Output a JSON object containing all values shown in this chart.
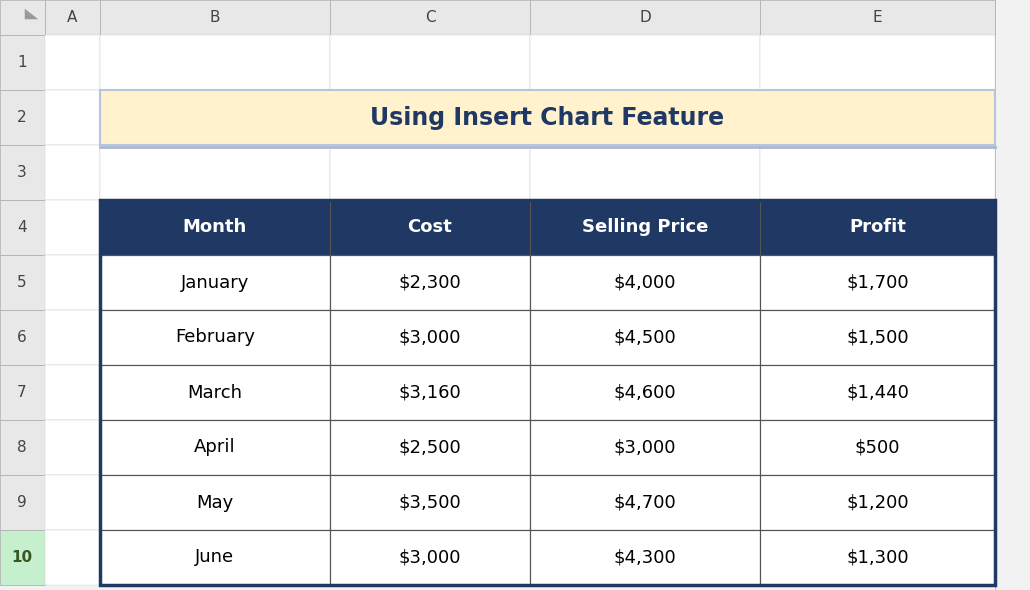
{
  "title": "Using Insert Chart Feature",
  "title_bg": "#FFF2CC",
  "title_border": "#B8C4D9",
  "header_bg": "#1F3864",
  "header_fg": "#FFFFFF",
  "row_bg": "#FFFFFF",
  "row_fg": "#000000",
  "col_headers": [
    "Month",
    "Cost",
    "Selling Price",
    "Profit"
  ],
  "rows": [
    [
      "January",
      "$2,300",
      "$4,000",
      "$1,700"
    ],
    [
      "February",
      "$3,000",
      "$4,500",
      "$1,500"
    ],
    [
      "March",
      "$3,160",
      "$4,600",
      "$1,440"
    ],
    [
      "April",
      "$2,500",
      "$3,000",
      "$500"
    ],
    [
      "May",
      "$3,500",
      "$4,700",
      "$1,200"
    ],
    [
      "June",
      "$3,000",
      "$4,300",
      "$1,300"
    ]
  ],
  "col_letters": [
    "A",
    "B",
    "C",
    "D",
    "E"
  ],
  "excel_header_bg": "#E8E8E8",
  "excel_header_fg": "#444444",
  "row_num_selected_bg": "#C6EFCE",
  "row_num_selected_fg": "#375623",
  "table_border_color": "#1F3864",
  "title_text_color": "#1F3864",
  "cell_border_color": "#888888",
  "outer_cell_border": "#CCCCCC",
  "bg_color": "#FFFFFF",
  "spreadsheet_bg": "#F2F2F2"
}
